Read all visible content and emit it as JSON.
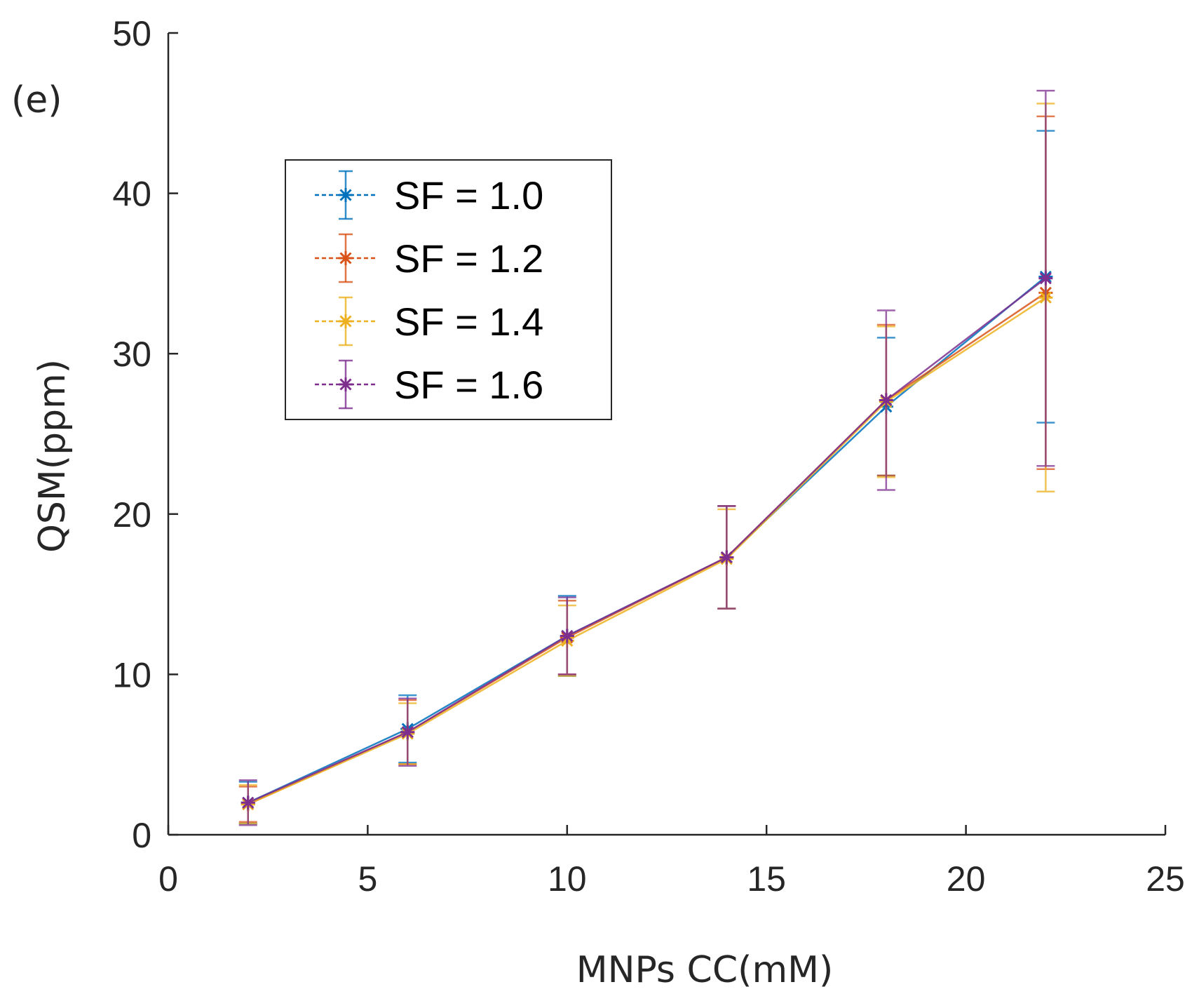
{
  "panel_label": "(e)",
  "chart_data": {
    "type": "line",
    "title": "",
    "xlabel": "MNPs CC(mM)",
    "ylabel": "QSM(ppm)",
    "xlim": [
      0,
      25
    ],
    "ylim": [
      0,
      50
    ],
    "xticks": [
      0,
      5,
      10,
      15,
      20,
      25
    ],
    "yticks": [
      0,
      10,
      20,
      30,
      40,
      50
    ],
    "x": [
      2,
      6,
      10,
      14,
      18,
      22
    ],
    "legend_position": "upper-left",
    "series": [
      {
        "name": "SF = 1.0",
        "color": "#0072BD",
        "values": [
          2.0,
          6.6,
          12.4,
          17.3,
          26.7,
          34.8
        ],
        "err_low": [
          1.3,
          2.1,
          2.5,
          3.2,
          4.3,
          9.1
        ],
        "err_high": [
          1.3,
          2.1,
          2.5,
          3.2,
          4.3,
          9.1
        ],
        "marker": "*"
      },
      {
        "name": "SF = 1.2",
        "color": "#D95319",
        "values": [
          1.9,
          6.4,
          12.3,
          17.3,
          27.1,
          33.8
        ],
        "err_low": [
          1.1,
          2.0,
          2.3,
          3.2,
          4.7,
          11.0
        ],
        "err_high": [
          1.1,
          2.0,
          2.3,
          3.2,
          4.7,
          11.0
        ],
        "marker": "*"
      },
      {
        "name": "SF = 1.4",
        "color": "#EDB120",
        "values": [
          1.9,
          6.3,
          12.1,
          17.2,
          27.0,
          33.5
        ],
        "err_low": [
          1.2,
          1.9,
          2.2,
          3.1,
          4.7,
          12.1
        ],
        "err_high": [
          1.2,
          1.9,
          2.2,
          3.1,
          4.7,
          12.1
        ],
        "marker": "*"
      },
      {
        "name": "SF = 1.6",
        "color": "#7E2F8E",
        "values": [
          2.0,
          6.4,
          12.4,
          17.3,
          27.1,
          34.7
        ],
        "err_low": [
          1.4,
          2.1,
          2.4,
          3.2,
          5.6,
          11.7
        ],
        "err_high": [
          1.4,
          2.1,
          2.4,
          3.2,
          5.6,
          11.7
        ],
        "marker": "*"
      }
    ]
  }
}
